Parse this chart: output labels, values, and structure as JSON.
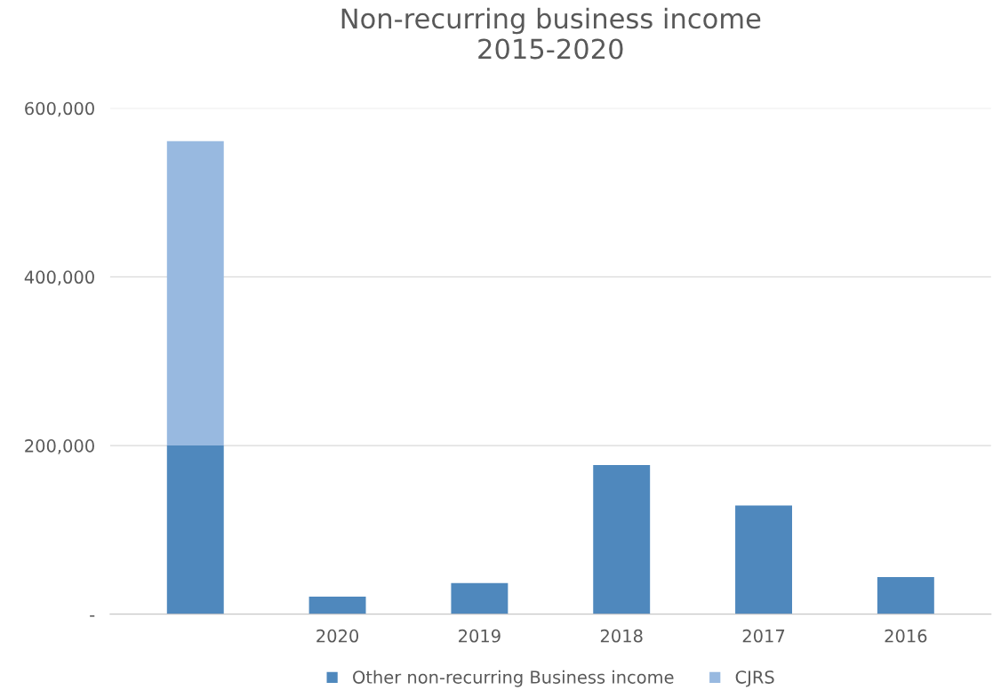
{
  "chart_data": {
    "type": "bar",
    "title": "Non-recurring business income\n2015-2020",
    "categories": [
      null,
      "2020",
      "2019",
      "2018",
      "2017",
      "2016"
    ],
    "series": [
      {
        "name": "Other non-recurring Business income",
        "color": "#4f88bd",
        "values": [
          200000,
          21000,
          37000,
          177000,
          129000,
          44000
        ]
      },
      {
        "name": "CJRS",
        "color": "#98b9e0",
        "values": [
          361000,
          null,
          null,
          null,
          null,
          null
        ]
      }
    ],
    "stacked": true,
    "ylim": [
      0,
      600000
    ],
    "yticks": [
      {
        "value": 0,
        "label": "-"
      },
      {
        "value": 200000,
        "label": "200,000"
      },
      {
        "value": 400000,
        "label": "400,000"
      },
      {
        "value": 600000,
        "label": "600,000"
      }
    ],
    "grid": "y",
    "legend": "bottom"
  }
}
